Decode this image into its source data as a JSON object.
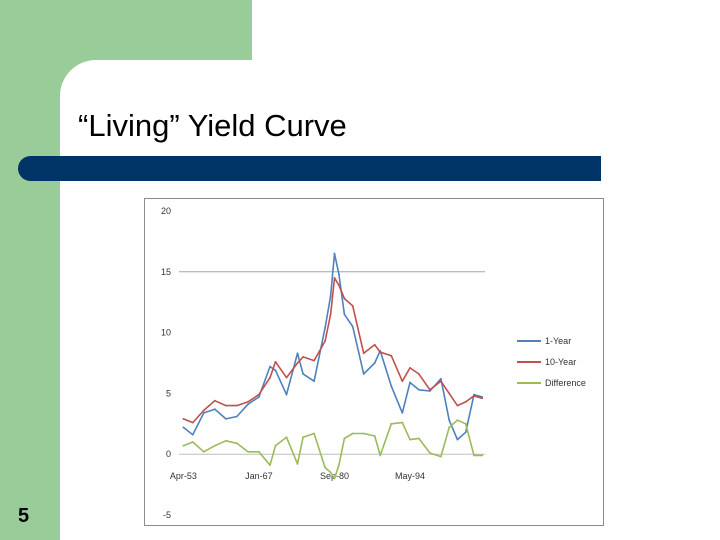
{
  "slide": {
    "title": "“Living” Yield Curve",
    "number": "5"
  },
  "colors": {
    "green_band": "#99cc99",
    "title_bar": "#003366",
    "one_year": "#4f81bd",
    "ten_year": "#c0504d",
    "difference": "#9bbb59"
  },
  "chart_data": {
    "type": "line",
    "title": "",
    "xlabel": "",
    "ylabel": "",
    "ylim": [
      -5,
      20
    ],
    "yticks": [
      "20",
      "15",
      "10",
      "5",
      "0",
      "-5"
    ],
    "xticks": [
      "Apr-53",
      "Jan-67",
      "Sep-80",
      "May-94"
    ],
    "grid": "horizontal",
    "legend_position": "right",
    "x": [
      1953.3,
      1955,
      1957,
      1959,
      1961,
      1963,
      1965,
      1967,
      1969,
      1970,
      1972,
      1974,
      1975,
      1977,
      1979,
      1980,
      1980.7,
      1981.5,
      1982.5,
      1984,
      1986,
      1988,
      1989,
      1991,
      1993,
      1994.4,
      1996,
      1998,
      2000,
      2001.5,
      2003,
      2004.5,
      2006,
      2007.5
    ],
    "series": [
      {
        "name": "1-Year",
        "values": [
          2.2,
          1.6,
          3.4,
          3.7,
          2.9,
          3.1,
          4.1,
          4.7,
          7.2,
          6.9,
          4.9,
          8.3,
          6.6,
          6.0,
          10.4,
          13.0,
          16.5,
          14.8,
          11.5,
          10.5,
          6.6,
          7.5,
          8.5,
          5.6,
          3.4,
          5.9,
          5.3,
          5.2,
          6.2,
          2.8,
          1.2,
          1.8,
          4.9,
          4.7
        ]
      },
      {
        "name": "10-Year",
        "values": [
          2.9,
          2.6,
          3.6,
          4.4,
          4.0,
          4.0,
          4.3,
          4.9,
          6.3,
          7.6,
          6.3,
          7.5,
          8.0,
          7.7,
          9.3,
          11.5,
          14.5,
          13.9,
          12.8,
          12.2,
          8.3,
          9.0,
          8.4,
          8.1,
          6.0,
          7.1,
          6.6,
          5.3,
          6.0,
          5.0,
          4.0,
          4.3,
          4.8,
          4.6
        ]
      },
      {
        "name": "Difference",
        "values": [
          0.7,
          1.0,
          0.2,
          0.7,
          1.1,
          0.9,
          0.2,
          0.2,
          -0.9,
          0.7,
          1.4,
          -0.8,
          1.4,
          1.7,
          -1.1,
          -1.5,
          -2.0,
          -0.9,
          1.3,
          1.7,
          1.7,
          1.5,
          -0.1,
          2.5,
          2.6,
          1.2,
          1.3,
          0.1,
          -0.2,
          2.2,
          2.8,
          2.5,
          -0.1,
          -0.1
        ]
      }
    ]
  }
}
